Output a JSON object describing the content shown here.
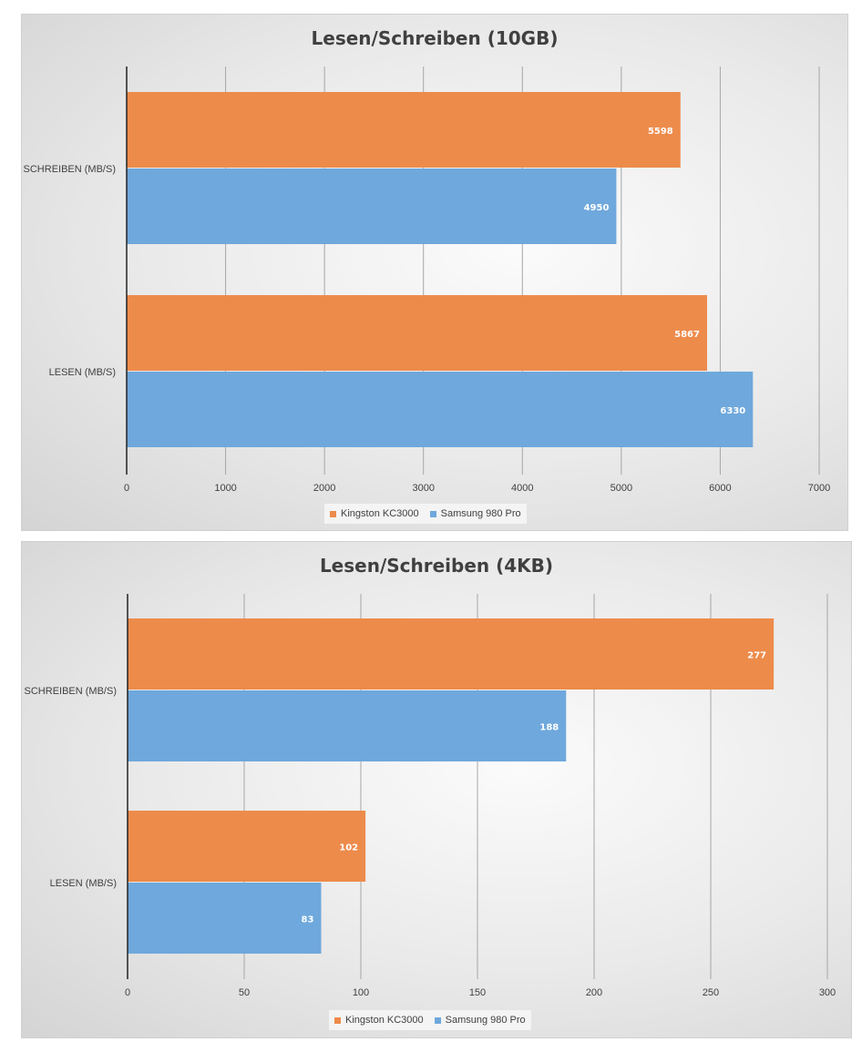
{
  "chart_data": [
    {
      "type": "bar",
      "orientation": "horizontal",
      "title": "Lesen/Schreiben (10GB)",
      "categories": [
        "SCHREIBEN (MB/S)",
        "LESEN (MB/S)"
      ],
      "series": [
        {
          "name": "Kingston KC3000",
          "color": "#ED8B4B",
          "values": [
            5598,
            5867
          ]
        },
        {
          "name": "Samsung 980 Pro",
          "color": "#6FA8DC",
          "values": [
            4950,
            6330
          ]
        }
      ],
      "xlim": [
        0,
        7000
      ],
      "ticks": [
        0,
        1000,
        2000,
        3000,
        4000,
        5000,
        6000,
        7000
      ],
      "legend": "bottom",
      "grid": true
    },
    {
      "type": "bar",
      "orientation": "horizontal",
      "title": "Lesen/Schreiben (4KB)",
      "categories": [
        "SCHREIBEN (MB/S)",
        "LESEN (MB/S)"
      ],
      "series": [
        {
          "name": "Kingston KC3000",
          "color": "#ED8B4B",
          "values": [
            277,
            102
          ]
        },
        {
          "name": "Samsung 980 Pro",
          "color": "#6FA8DC",
          "values": [
            188,
            83
          ]
        }
      ],
      "xlim": [
        0,
        300
      ],
      "ticks": [
        0,
        50,
        100,
        150,
        200,
        250,
        300
      ],
      "legend": "bottom",
      "grid": true
    }
  ]
}
